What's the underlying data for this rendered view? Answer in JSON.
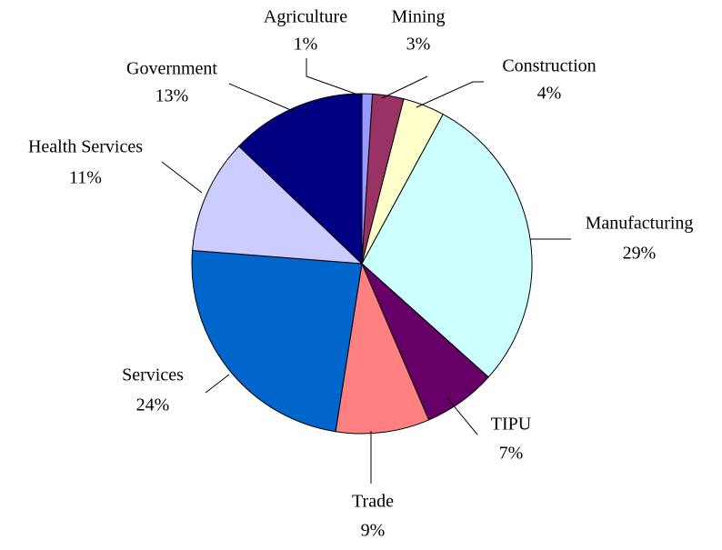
{
  "chart_data": {
    "type": "pie",
    "categories": [
      "Agriculture",
      "Mining",
      "Construction",
      "Manufacturing",
      "TIPU",
      "Trade",
      "Services",
      "Health Services",
      "Government"
    ],
    "values": [
      1,
      3,
      4,
      29,
      7,
      9,
      24,
      11,
      13
    ],
    "value_labels": [
      "1%",
      "3%",
      "4%",
      "29%",
      "7%",
      "9%",
      "24%",
      "11%",
      "13%"
    ],
    "colors": [
      "#9999ff",
      "#993366",
      "#ffffcc",
      "#ccffff",
      "#660066",
      "#ff8080",
      "#0066cc",
      "#ccccff",
      "#000080"
    ]
  }
}
